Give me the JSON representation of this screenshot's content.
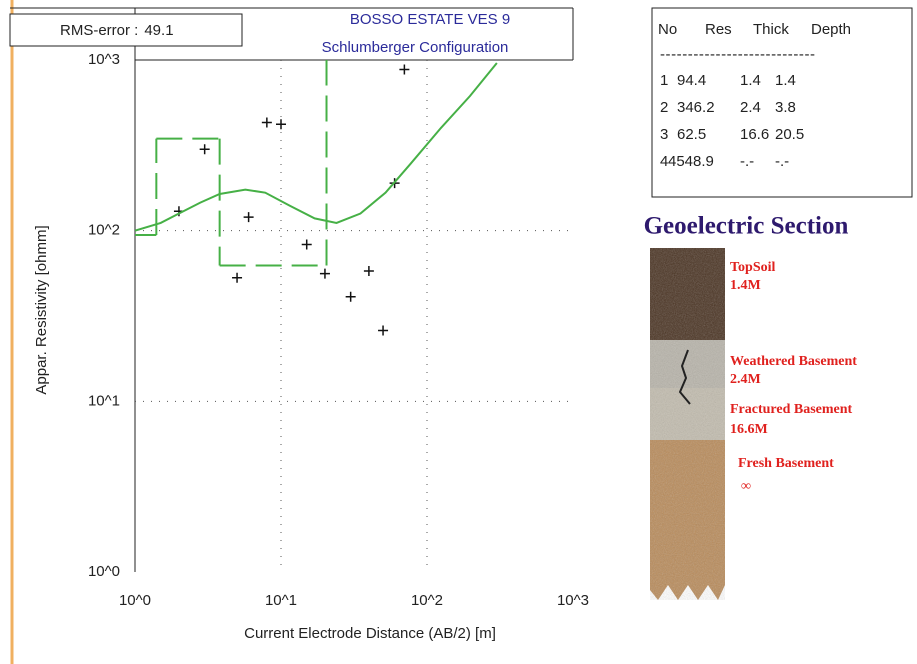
{
  "chart_data": {
    "type": "scatter",
    "title": "BOSSO ESTATE VES 9",
    "subtitle": "Schlumberger Configuration",
    "rms_label": "RMS-error :",
    "rms_value": 49.1,
    "x_label": "Current Electrode Distance (AB/2) [m]",
    "y_label": "Appar. Resistivity [ohmm]",
    "xscale": "log",
    "yscale": "log",
    "xlim": [
      1,
      1000
    ],
    "ylim": [
      1,
      1000
    ],
    "xticks": [
      {
        "value": 1,
        "label": "10^0"
      },
      {
        "value": 10,
        "label": "10^1"
      },
      {
        "value": 100,
        "label": "10^2"
      },
      {
        "value": 1000,
        "label": "10^3"
      }
    ],
    "yticks": [
      {
        "value": 1,
        "label": "10^0"
      },
      {
        "value": 10,
        "label": "10^1"
      },
      {
        "value": 100,
        "label": "10^2"
      },
      {
        "value": 1000,
        "label": "10^3"
      }
    ],
    "grid": true,
    "model_color": "#46b046",
    "series": [
      {
        "kind": "points",
        "color": "#111111",
        "x": [
          2,
          3,
          5,
          6,
          8,
          10,
          15,
          20,
          30,
          40,
          50,
          60,
          70
        ],
        "values": [
          130,
          300,
          53,
          120,
          430,
          420,
          83,
          56,
          41,
          58,
          26,
          190,
          880
        ]
      },
      {
        "kind": "curve",
        "color": "#46b046",
        "x": [
          1,
          1.5,
          2,
          2.8,
          3.8,
          5.7,
          7.8,
          11.5,
          17,
          24,
          35,
          52,
          77,
          123,
          197,
          301
        ],
        "values": [
          100,
          111,
          126,
          146,
          164,
          174,
          167,
          140,
          118,
          111,
          126,
          167,
          246,
          395,
          615,
          960
        ]
      }
    ]
  },
  "model_table": {
    "columns": [
      "No",
      "Res",
      "Thick",
      "Depth"
    ],
    "separator": "----------------------------",
    "rows": [
      [
        1,
        94.4,
        1.4,
        1.4
      ],
      [
        2,
        346.2,
        2.4,
        3.8
      ],
      [
        3,
        62.5,
        16.6,
        20.5
      ],
      [
        4,
        4548.9,
        "-.-",
        "-.-"
      ]
    ]
  },
  "geoelectric_section": {
    "title": "Geoelectric Section",
    "layers": [
      {
        "name": "TopSoil",
        "thickness": "1.4M"
      },
      {
        "name": "Weathered Basement",
        "thickness": "2.4M"
      },
      {
        "name": "Fractured Basement",
        "thickness": "16.6M"
      },
      {
        "name": "Fresh Basement",
        "thickness": "∞"
      }
    ]
  }
}
